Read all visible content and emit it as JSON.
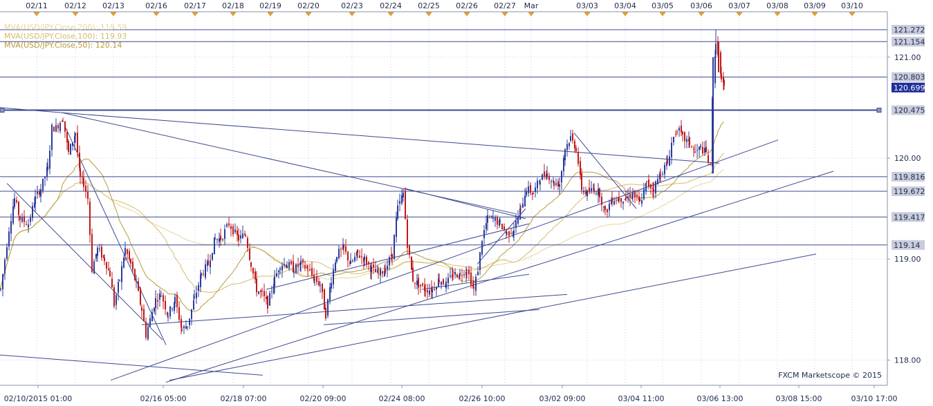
{
  "chart_data": {
    "type": "candlestick",
    "symbol": "USD/JPY",
    "copyright": "FXCM Marketscope © 2015",
    "legend": [
      {
        "label": "MVA(USD/JPY.Close,200)",
        "value": "119.59",
        "color": "#e8d49a"
      },
      {
        "label": "MVA(USD/JPY.Close,100)",
        "value": "119.93",
        "color": "#d4bc6a"
      },
      {
        "label": "MVA(USD/JPY.Close,50)",
        "value": "120.14",
        "color": "#b89a3a"
      }
    ],
    "top_date_labels": [
      "02/11",
      "02/12",
      "02/13",
      "02/16",
      "02/17",
      "02/18",
      "02/19",
      "02/20",
      "02/23",
      "02/24",
      "02/25",
      "02/26",
      "02/27",
      "Mar",
      "03/03",
      "03/04",
      "03/05",
      "03/06",
      "03/07",
      "03/08",
      "03/09",
      "03/10"
    ],
    "top_date_positions": [
      53,
      109,
      164,
      226,
      282,
      337,
      391,
      446,
      509,
      565,
      620,
      675,
      730,
      768,
      849,
      904,
      958,
      1014,
      1069,
      1124,
      1178,
      1232
    ],
    "bottom_time_labels": [
      "02/10/2015 01:00",
      "02/16 05:00",
      "02/18 07:00",
      "02/20 09:00",
      "02/24 08:00",
      "02/26 10:00",
      "03/02 09:00",
      "03/04 11:00",
      "03/06 13:00",
      "03/08 15:00",
      "03/10 17:00"
    ],
    "bottom_time_positions": [
      55,
      236,
      352,
      467,
      581,
      697,
      813,
      927,
      1041,
      1155,
      1264
    ],
    "y_axis": {
      "min": 117.75,
      "max": 121.45,
      "ticks": [
        118.0,
        119.0,
        120.0,
        121.0
      ],
      "tick_labels": [
        "118.00",
        "119.00",
        "120.00",
        "121.00"
      ]
    },
    "price_levels": [
      {
        "value": 121.272,
        "label": "121.272",
        "highlight": false
      },
      {
        "value": 121.154,
        "label": "121.154",
        "highlight": false
      },
      {
        "value": 120.803,
        "label": "120.803",
        "highlight": false
      },
      {
        "value": 120.699,
        "label": "120.699",
        "highlight": true
      },
      {
        "value": 120.475,
        "label": "120.475",
        "highlight": false
      },
      {
        "value": 119.816,
        "label": "119.816",
        "highlight": false
      },
      {
        "value": 119.672,
        "label": "119.672",
        "highlight": false
      },
      {
        "value": 119.417,
        "label": "119.417",
        "highlight": false
      },
      {
        "value": 119.14,
        "label": "119.14",
        "highlight": false
      }
    ],
    "horizontal_lines": [
      121.272,
      121.154,
      120.803,
      119.816,
      119.672,
      119.417,
      119.14
    ],
    "selected_line": 120.475,
    "candles_anchor_price": [
      [
        0,
        118.7
      ],
      [
        6,
        119.0
      ],
      [
        12,
        119.3
      ],
      [
        20,
        119.6
      ],
      [
        28,
        119.4
      ],
      [
        40,
        119.35
      ],
      [
        50,
        119.6
      ],
      [
        58,
        119.7
      ],
      [
        68,
        119.9
      ],
      [
        74,
        120.3
      ],
      [
        80,
        120.3
      ],
      [
        90,
        120.4
      ],
      [
        98,
        120.05
      ],
      [
        108,
        120.25
      ],
      [
        115,
        119.8
      ],
      [
        120,
        119.75
      ],
      [
        126,
        119.6
      ],
      [
        132,
        118.9
      ],
      [
        140,
        119.1
      ],
      [
        150,
        119.0
      ],
      [
        158,
        118.85
      ],
      [
        164,
        118.55
      ],
      [
        172,
        118.8
      ],
      [
        180,
        119.1
      ],
      [
        188,
        118.95
      ],
      [
        196,
        118.75
      ],
      [
        204,
        118.5
      ],
      [
        210,
        118.25
      ],
      [
        216,
        118.4
      ],
      [
        224,
        118.6
      ],
      [
        232,
        118.65
      ],
      [
        242,
        118.45
      ],
      [
        252,
        118.6
      ],
      [
        262,
        118.3
      ],
      [
        270,
        118.35
      ],
      [
        280,
        118.6
      ],
      [
        290,
        118.85
      ],
      [
        300,
        118.95
      ],
      [
        310,
        119.2
      ],
      [
        318,
        119.2
      ],
      [
        330,
        119.35
      ],
      [
        344,
        119.2
      ],
      [
        354,
        119.25
      ],
      [
        362,
        118.95
      ],
      [
        370,
        118.7
      ],
      [
        378,
        118.65
      ],
      [
        386,
        118.55
      ],
      [
        396,
        118.8
      ],
      [
        404,
        118.95
      ],
      [
        414,
        118.95
      ],
      [
        424,
        118.9
      ],
      [
        434,
        118.95
      ],
      [
        444,
        118.9
      ],
      [
        454,
        118.8
      ],
      [
        462,
        118.75
      ],
      [
        470,
        118.45
      ],
      [
        478,
        118.8
      ],
      [
        486,
        119.05
      ],
      [
        496,
        119.1
      ],
      [
        506,
        118.95
      ],
      [
        516,
        119.05
      ],
      [
        526,
        119.0
      ],
      [
        536,
        118.9
      ],
      [
        546,
        118.85
      ],
      [
        556,
        118.9
      ],
      [
        566,
        119.05
      ],
      [
        574,
        119.5
      ],
      [
        582,
        119.65
      ],
      [
        588,
        119.15
      ],
      [
        596,
        118.8
      ],
      [
        604,
        118.75
      ],
      [
        614,
        118.7
      ],
      [
        624,
        118.7
      ],
      [
        634,
        118.8
      ],
      [
        644,
        118.75
      ],
      [
        654,
        118.85
      ],
      [
        664,
        118.85
      ],
      [
        674,
        118.9
      ],
      [
        684,
        118.7
      ],
      [
        690,
        118.9
      ],
      [
        696,
        119.2
      ],
      [
        704,
        119.4
      ],
      [
        712,
        119.4
      ],
      [
        722,
        119.35
      ],
      [
        732,
        119.25
      ],
      [
        742,
        119.3
      ],
      [
        752,
        119.5
      ],
      [
        760,
        119.7
      ],
      [
        770,
        119.65
      ],
      [
        780,
        119.8
      ],
      [
        790,
        119.85
      ],
      [
        800,
        119.75
      ],
      [
        808,
        119.75
      ],
      [
        816,
        120.1
      ],
      [
        824,
        120.2
      ],
      [
        832,
        120.1
      ],
      [
        840,
        119.7
      ],
      [
        848,
        119.65
      ],
      [
        858,
        119.7
      ],
      [
        866,
        119.65
      ],
      [
        874,
        119.45
      ],
      [
        884,
        119.6
      ],
      [
        894,
        119.6
      ],
      [
        904,
        119.6
      ],
      [
        914,
        119.65
      ],
      [
        924,
        119.55
      ],
      [
        934,
        119.75
      ],
      [
        944,
        119.7
      ],
      [
        954,
        119.85
      ],
      [
        964,
        119.95
      ],
      [
        970,
        120.15
      ],
      [
        978,
        120.3
      ],
      [
        986,
        120.2
      ],
      [
        996,
        120.15
      ],
      [
        1004,
        120.05
      ],
      [
        1012,
        120.1
      ],
      [
        1020,
        120.05
      ],
      [
        1026,
        119.9
      ],
      [
        1030,
        120.8
      ],
      [
        1034,
        121.1
      ],
      [
        1038,
        121.05
      ],
      [
        1042,
        120.75
      ],
      [
        1046,
        120.7
      ]
    ],
    "trendlines": [
      [
        [
          0,
          120.5
        ],
        [
          90,
          120.45
        ]
      ],
      [
        [
          90,
          120.45
        ],
        [
          745,
          119.45
        ]
      ],
      [
        [
          90,
          120.45
        ],
        [
          1040,
          119.95
        ]
      ],
      [
        [
          95,
          120.3
        ],
        [
          240,
          118.15
        ]
      ],
      [
        [
          10,
          119.75
        ],
        [
          235,
          118.2
        ]
      ],
      [
        [
          0,
          118.05
        ],
        [
          380,
          117.85
        ]
      ],
      [
        [
          160,
          117.8
        ],
        [
          1125,
          120.18
        ]
      ],
      [
        [
          240,
          117.78
        ],
        [
          1205,
          119.87
        ]
      ],
      [
        [
          205,
          118.35
        ],
        [
          820,
          118.65
        ]
      ],
      [
        [
          385,
          118.7
        ],
        [
          765,
          119.35
        ]
      ],
      [
        [
          468,
          118.35
        ],
        [
          780,
          118.5
        ]
      ],
      [
        [
          610,
          118.7
        ],
        [
          765,
          118.85
        ]
      ],
      [
        [
          585,
          119.7
        ],
        [
          760,
          119.4
        ]
      ],
      [
        [
          830,
          120.25
        ],
        [
          920,
          119.5
        ]
      ],
      [
        [
          690,
          118.95
        ],
        [
          760,
          119.5
        ]
      ],
      [
        [
          1180,
          119.05
        ],
        [
          245,
          117.8
        ]
      ]
    ]
  }
}
